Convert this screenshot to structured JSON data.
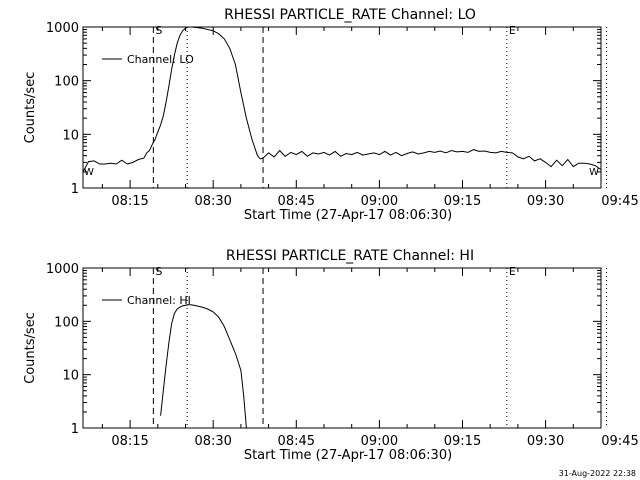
{
  "footer": {
    "timestamp": "31-Aug-2022 22:38"
  },
  "chart_data": [
    {
      "type": "line",
      "title": "RHESSI PARTICLE_RATE Channel: LO",
      "xlabel": "Start Time (27-Apr-17 08:06:30)",
      "ylabel": "Counts/sec",
      "yscale": "log",
      "ylim": [
        1,
        1000
      ],
      "xlim_minutes": [
        6.5,
        100
      ],
      "y_ticks": [
        {
          "value": 1,
          "label": "1"
        },
        {
          "value": 10,
          "label": "10"
        },
        {
          "value": 100,
          "label": "100"
        },
        {
          "value": 1000,
          "label": "1000"
        }
      ],
      "x_ticks": [
        {
          "minute": 15,
          "label": "08:15"
        },
        {
          "minute": 30,
          "label": "08:30"
        },
        {
          "minute": 45,
          "label": "08:45"
        },
        {
          "minute": 60,
          "label": "09:00"
        },
        {
          "minute": 75,
          "label": "09:15"
        },
        {
          "minute": 90,
          "label": "09:30"
        },
        {
          "minute": 105,
          "label": "09:45"
        }
      ],
      "legend": {
        "position": "top-left",
        "label": "Channel: LO"
      },
      "markers": [
        {
          "minute": 19.2,
          "style": "dashed",
          "label": "S"
        },
        {
          "minute": 25.3,
          "style": "dotted",
          "label": ""
        },
        {
          "minute": 39.0,
          "style": "dashed",
          "label": ""
        },
        {
          "minute": 83.0,
          "style": "dotted",
          "label": "E"
        },
        {
          "minute": 101.0,
          "style": "dotted",
          "label": ""
        }
      ],
      "edge_labels": {
        "left": "W",
        "right": "W"
      },
      "series": [
        {
          "name": "Channel: LO",
          "minutes": [
            6.5,
            7.5,
            8.5,
            9.5,
            10.5,
            11.5,
            12.5,
            13.5,
            14.5,
            15.5,
            16.5,
            17.5,
            18.0,
            18.5,
            19.0,
            19.5,
            20.0,
            20.5,
            21.0,
            21.5,
            22.0,
            22.5,
            23.0,
            23.5,
            24.0,
            24.5,
            25.0,
            25.5,
            26.0,
            27.0,
            28.0,
            29.0,
            30.0,
            31.0,
            32.0,
            33.0,
            34.0,
            35.0,
            36.0,
            37.0,
            38.0,
            38.5,
            39.0,
            40.0,
            41.0,
            42.0,
            43.0,
            44.0,
            45.0,
            46.0,
            47.0,
            48.0,
            49.0,
            50.0,
            51.0,
            52.0,
            53.0,
            54.0,
            55.0,
            56.0,
            57.0,
            58.0,
            59.0,
            60.0,
            61.0,
            62.0,
            63.0,
            64.0,
            65.0,
            66.0,
            67.0,
            68.0,
            69.0,
            70.0,
            71.0,
            72.0,
            73.0,
            74.0,
            75.0,
            76.0,
            77.0,
            78.0,
            79.0,
            80.0,
            81.0,
            82.0,
            83.0,
            84.0,
            85.0,
            86.0,
            87.0,
            88.0,
            89.0,
            90.0,
            91.0,
            92.0,
            93.0,
            94.0,
            95.0,
            96.0,
            97.0,
            98.0,
            99.0,
            100.0
          ],
          "values": [
            2.0,
            3.1,
            3.2,
            2.8,
            2.8,
            2.9,
            2.8,
            3.3,
            2.8,
            3.0,
            3.4,
            3.6,
            4.5,
            5.0,
            6.5,
            8.0,
            11,
            15,
            22,
            40,
            80,
            160,
            300,
            500,
            700,
            850,
            950,
            1000,
            1000,
            980,
            950,
            900,
            850,
            750,
            600,
            400,
            200,
            60,
            20,
            8,
            4,
            3.5,
            3.6,
            4.5,
            3.8,
            5.0,
            3.9,
            4.6,
            4.2,
            4.8,
            3.9,
            4.5,
            4.3,
            4.6,
            4.1,
            4.8,
            3.9,
            4.4,
            4.2,
            4.6,
            4.1,
            4.3,
            4.5,
            4.2,
            4.8,
            4.1,
            4.6,
            4.0,
            4.4,
            4.7,
            4.3,
            4.5,
            4.8,
            4.6,
            4.9,
            4.5,
            5.0,
            4.7,
            4.8,
            4.6,
            5.2,
            4.8,
            4.9,
            4.6,
            4.5,
            4.8,
            4.6,
            4.5,
            3.8,
            3.5,
            3.9,
            3.2,
            3.5,
            3.0,
            2.5,
            3.3,
            2.6,
            3.4,
            2.5,
            2.9,
            2.9,
            2.8,
            2.6,
            2.2
          ]
        }
      ]
    },
    {
      "type": "line",
      "title": "RHESSI PARTICLE_RATE Channel: HI",
      "xlabel": "Start Time (27-Apr-17 08:06:30)",
      "ylabel": "Counts/sec",
      "yscale": "log",
      "ylim": [
        1,
        1000
      ],
      "xlim_minutes": [
        6.5,
        100
      ],
      "y_ticks": [
        {
          "value": 1,
          "label": "1"
        },
        {
          "value": 10,
          "label": "10"
        },
        {
          "value": 100,
          "label": "100"
        },
        {
          "value": 1000,
          "label": "1000"
        }
      ],
      "x_ticks": [
        {
          "minute": 15,
          "label": "08:15"
        },
        {
          "minute": 30,
          "label": "08:30"
        },
        {
          "minute": 45,
          "label": "08:45"
        },
        {
          "minute": 60,
          "label": "09:00"
        },
        {
          "minute": 75,
          "label": "09:15"
        },
        {
          "minute": 90,
          "label": "09:30"
        },
        {
          "minute": 105,
          "label": "09:45"
        }
      ],
      "legend": {
        "position": "top-left",
        "label": "Channel: HI"
      },
      "markers": [
        {
          "minute": 19.2,
          "style": "dashed",
          "label": "S"
        },
        {
          "minute": 25.3,
          "style": "dotted",
          "label": ""
        },
        {
          "minute": 39.0,
          "style": "dashed",
          "label": ""
        },
        {
          "minute": 83.0,
          "style": "dotted",
          "label": "E"
        },
        {
          "minute": 101.0,
          "style": "dotted",
          "label": ""
        }
      ],
      "edge_labels": {
        "left": "",
        "right": ""
      },
      "series": [
        {
          "name": "Channel: HI",
          "minutes": [
            20.5,
            21.0,
            21.5,
            22.0,
            22.5,
            23.0,
            23.5,
            24.0,
            24.5,
            25.0,
            25.5,
            26.0,
            26.5,
            27.0,
            28.0,
            29.0,
            30.0,
            31.0,
            32.0,
            33.0,
            34.0,
            35.0,
            35.5,
            36.0
          ],
          "values": [
            1.7,
            5,
            15,
            40,
            90,
            140,
            170,
            185,
            195,
            200,
            205,
            205,
            200,
            195,
            185,
            170,
            150,
            120,
            80,
            45,
            25,
            12,
            4,
            1
          ]
        }
      ]
    }
  ]
}
